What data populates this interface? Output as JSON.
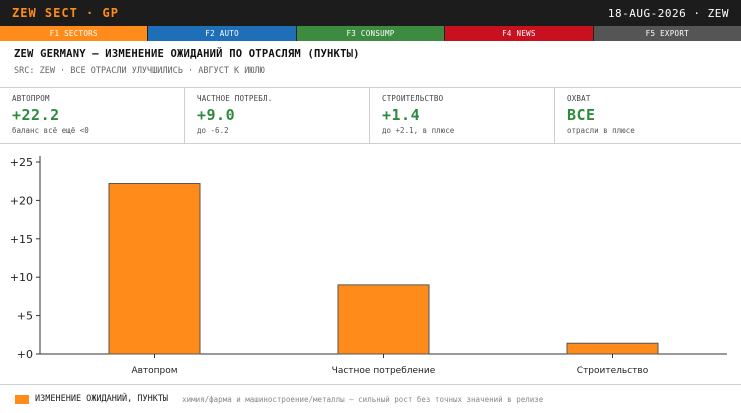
{
  "app": {
    "title": "ZEW SECT · GP",
    "date": "18-AUG-2026 · ZEW"
  },
  "fkeys": [
    {
      "label": "F1 SECTORS",
      "color": "#ff8c1a"
    },
    {
      "label": "F2 AUTO",
      "color": "#1e6fb8"
    },
    {
      "label": "F3 CONSUMP",
      "color": "#3d8b40"
    },
    {
      "label": "F4 NEWS",
      "color": "#c8101e"
    },
    {
      "label": "F5 EXPORT",
      "color": "#555555"
    }
  ],
  "header": {
    "title": "ZEW GERMANY — ИЗМЕНЕНИЕ ОЖИДАНИЙ ПО ОТРАСЛЯМ (ПУНКТЫ)",
    "source": "SRC: ZEW · ВСЕ ОТРАСЛИ УЛУЧШИЛИСЬ · АВГУСТ К ИЮЛЮ"
  },
  "kpis": [
    {
      "label": "АВТОПРОМ",
      "value": "+22.2",
      "note": "баланс всё ещё <0"
    },
    {
      "label": "ЧАСТНОЕ ПОТРЕБЛ.",
      "value": "+9.0",
      "note": "до -6.2"
    },
    {
      "label": "СТРОИТЕЛЬСТВО",
      "value": "+1.4",
      "note": "до +2.1, в плюсе"
    },
    {
      "label": "ОХВАТ",
      "value": "ВСЕ",
      "note": "отрасли в плюсе"
    }
  ],
  "chart_data": {
    "type": "bar",
    "categories": [
      "Автопром",
      "Частное потребление",
      "Строительство"
    ],
    "series": [
      {
        "name": "ИЗМЕНЕНИЕ ОЖИДАНИЙ, ПУНКТЫ",
        "values": [
          22.2,
          9.0,
          1.4
        ],
        "color": "#ff8c1a"
      }
    ],
    "yticks": [
      "+25",
      "+20",
      "+15",
      "+10",
      "+5",
      "+0"
    ],
    "ylim": [
      0,
      25
    ],
    "grid": false,
    "legend": "bottom-left"
  },
  "footer": {
    "legend_label": "ИЗМЕНЕНИЕ ОЖИДАНИЙ, ПУНКТЫ",
    "note": "химия/фарма и машиностроение/металлы — сильный рост без точных значений в релизе"
  }
}
